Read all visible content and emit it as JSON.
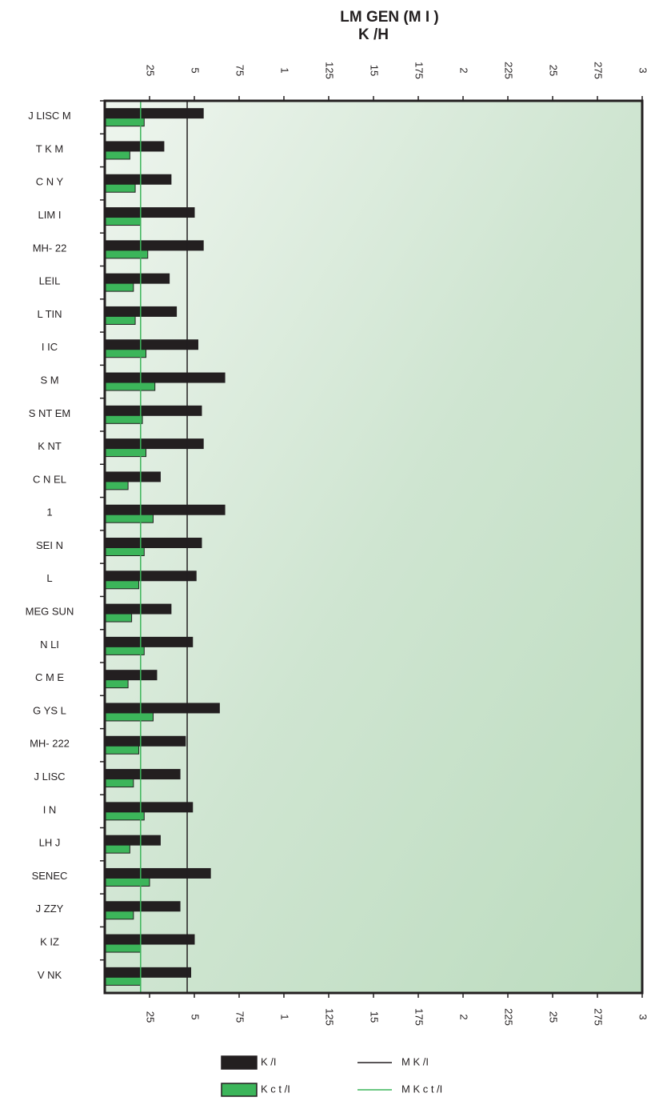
{
  "chart_data": {
    "type": "hbar",
    "title": "LM GEN (M I )",
    "subtitle": "K /H",
    "categories": [
      "J LISC M",
      "T K M",
      "C N Y",
      "LIM I",
      "MH- 22",
      "LEIL",
      "L TIN",
      "I IC",
      "S M",
      "S NT EM",
      "K NT",
      "C N EL",
      "1",
      "SEI N",
      "L",
      "MEG SUN",
      "N LI",
      "C M E",
      "G YS L",
      "MH- 222",
      "J LISC",
      "I N",
      "LH J",
      "SENEC",
      "J ZZY",
      "K IZ",
      "V NK"
    ],
    "series": [
      {
        "name": "K /I",
        "color": "#231f20",
        "values": [
          0.55,
          0.33,
          0.37,
          0.5,
          0.55,
          0.36,
          0.4,
          0.52,
          0.67,
          0.54,
          0.55,
          0.31,
          0.67,
          0.54,
          0.51,
          0.37,
          0.49,
          0.29,
          0.64,
          0.45,
          0.42,
          0.49,
          0.31,
          0.59,
          0.42,
          0.5,
          0.48
        ]
      },
      {
        "name": "K c t /I",
        "color": "#3cb55a",
        "values": [
          0.22,
          0.14,
          0.17,
          0.2,
          0.24,
          0.16,
          0.17,
          0.23,
          0.28,
          0.21,
          0.23,
          0.13,
          0.27,
          0.22,
          0.19,
          0.15,
          0.22,
          0.13,
          0.27,
          0.19,
          0.16,
          0.22,
          0.14,
          0.25,
          0.16,
          0.2,
          0.2
        ]
      }
    ],
    "reference_lines": [
      {
        "name": "M K /I",
        "value": 0.46,
        "color": "#231f20"
      },
      {
        "name": "M K c t /I",
        "value": 0.2,
        "color": "#3cb55a"
      }
    ],
    "xlim": [
      0,
      3
    ],
    "xticks": [
      {
        "value": 0.25,
        "label": "25"
      },
      {
        "value": 0.5,
        "label": "5"
      },
      {
        "value": 0.75,
        "label": "75"
      },
      1,
      {
        "value": 1.25,
        "label": "125"
      },
      {
        "value": 1.5,
        "label": "15"
      },
      {
        "value": 1.75,
        "label": "175"
      },
      2,
      {
        "value": 2.25,
        "label": "225"
      },
      {
        "value": 2.5,
        "label": "25"
      },
      {
        "value": 2.75,
        "label": "275"
      },
      3
    ]
  }
}
